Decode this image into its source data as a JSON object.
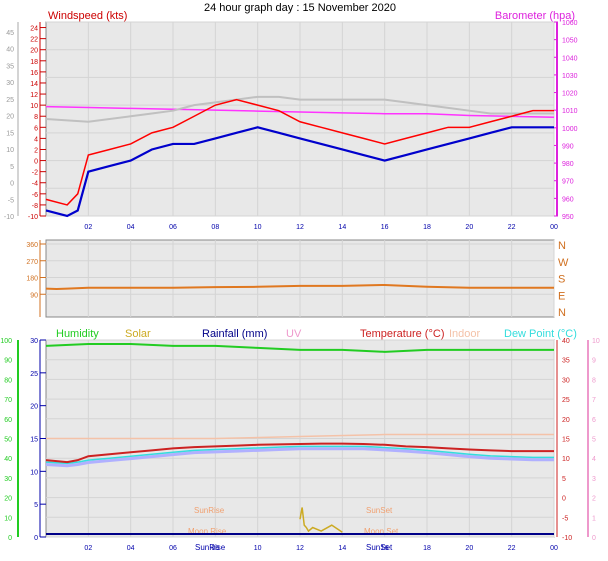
{
  "title": "24 hour graph day : 15 November 2020",
  "colors": {
    "wind": "#ff0000",
    "wind_avg": "#0000cc",
    "baro": "#ff33ff",
    "baro_axis": "#dd22dd",
    "gray": "#c0c0c0",
    "dir": "#e07820",
    "dir_axis": "#d07020",
    "humidity": "#22cc22",
    "solar": "#ccaa22",
    "rain": "#000088",
    "uv": "#ee99cc",
    "temp": "#cc2222",
    "indoor": "#f4c2a8",
    "dew": "#33dddd",
    "dewband": "#b0b0ff",
    "axisblue": "#0000aa",
    "plotbg": "#e8e8e8"
  },
  "chart_data": [
    {
      "type": "line",
      "name": "wind-baro",
      "left_label": "Windspeed (kts)",
      "right_label": "Barometer (hpa)",
      "left_ticks": [
        "24",
        "22",
        "20",
        "18",
        "16",
        "14",
        "12",
        "10",
        "8",
        "6",
        "4",
        "2",
        "0",
        "-2",
        "-4",
        "-6",
        "-8",
        "-10"
      ],
      "left_outer_ticks": [
        "45",
        "40",
        "35",
        "30",
        "25",
        "20",
        "15",
        "10",
        "5",
        "0",
        "-5",
        "-10"
      ],
      "right_ticks": [
        "1060",
        "1050",
        "1040",
        "1030",
        "1020",
        "1010",
        "1000",
        "990",
        "980",
        "970",
        "960",
        "950"
      ],
      "x_ticks": [
        "02",
        "04",
        "06",
        "08",
        "10",
        "12",
        "14",
        "16",
        "18",
        "20",
        "22",
        "00"
      ],
      "ylim": [
        -10,
        25
      ],
      "baro_x": [
        0,
        2,
        4,
        6,
        8,
        10,
        12,
        14,
        16,
        18,
        20,
        22,
        24
      ],
      "baro_y": [
        1012,
        1011.5,
        1011,
        1010.5,
        1010,
        1009.5,
        1009,
        1008.5,
        1008,
        1008,
        1007,
        1006.5,
        1006
      ],
      "gray_x": [
        0,
        2,
        4,
        5,
        6,
        7,
        8,
        9,
        10,
        11,
        12,
        13,
        14,
        15,
        16,
        17,
        18,
        19,
        20,
        21,
        22,
        23,
        24
      ],
      "gray_y": [
        7.5,
        7,
        8,
        8.5,
        9,
        10,
        10.5,
        11,
        11.5,
        11.5,
        11,
        11,
        11,
        11,
        11,
        10.5,
        10,
        9.5,
        9,
        8.5,
        8.5,
        8.5,
        8.5
      ],
      "wind_avg_x": [
        0,
        1,
        1.5,
        2,
        3,
        4,
        5,
        6,
        7,
        8,
        9,
        10,
        11,
        12,
        13,
        14,
        15,
        16,
        17,
        18,
        19,
        20,
        21,
        22,
        23,
        24
      ],
      "wind_avg_y": [
        -9,
        -10,
        -9,
        -2,
        -1,
        0,
        2,
        3,
        3,
        4,
        5,
        6,
        5,
        4,
        3,
        2,
        1,
        0,
        1,
        2,
        3,
        4,
        5,
        6,
        6,
        6
      ],
      "wind_gust_x": [
        0,
        1,
        1.5,
        2,
        3,
        4,
        5,
        6,
        7,
        8,
        9,
        10,
        11,
        12,
        13,
        14,
        15,
        16,
        17,
        18,
        19,
        20,
        21,
        22,
        23,
        24
      ],
      "wind_gust_y": [
        -7,
        -8,
        -6,
        1,
        2,
        3,
        5,
        6,
        8,
        10,
        11,
        10,
        9,
        7,
        6,
        5,
        4,
        3,
        4,
        5,
        6,
        6,
        7,
        8,
        9,
        9
      ]
    },
    {
      "type": "line",
      "name": "wind-direction",
      "left_ticks": [
        "360",
        "270",
        "180",
        "90"
      ],
      "right_ticks": [
        "N",
        "W",
        "S",
        "E",
        "N"
      ],
      "x": [
        0,
        0.5,
        1,
        2,
        4,
        6,
        8,
        10,
        12,
        14,
        16,
        18,
        20,
        22,
        24
      ],
      "y": [
        120,
        118,
        120,
        125,
        125,
        125,
        128,
        130,
        135,
        135,
        140,
        130,
        125,
        125,
        125
      ]
    },
    {
      "type": "line",
      "name": "temp-humidity",
      "legend": [
        "Humidity",
        "Solar",
        "Rainfall (mm)",
        "UV",
        "Temperature (°C)",
        "Indoor",
        "Dew Point (°C)"
      ],
      "left_ticks": [
        "100",
        "90",
        "80",
        "70",
        "60",
        "50",
        "40",
        "30",
        "20",
        "10",
        "0"
      ],
      "inner_ticks": [
        "30",
        "25",
        "20",
        "15",
        "10",
        "5",
        "0"
      ],
      "right_ticks": [
        "40",
        "35",
        "30",
        "25",
        "20",
        "15",
        "10",
        "5",
        "0",
        "-5",
        "-10"
      ],
      "far_right_ticks": [
        "10",
        "9",
        "8",
        "7",
        "6",
        "5",
        "4",
        "3",
        "2",
        "1",
        "0"
      ],
      "x_ticks": [
        "02",
        "04",
        "06",
        "08",
        "10",
        "12",
        "14",
        "16",
        "18",
        "20",
        "22",
        "00"
      ],
      "annotations": [
        "SunRise",
        "SunSet",
        "Moon Rise",
        "Moon Set",
        "SunRise",
        "SunSet"
      ],
      "humidity_x": [
        0,
        2,
        4,
        6,
        8,
        10,
        12,
        14,
        16,
        18,
        20,
        22,
        24
      ],
      "humidity_y": [
        97,
        98,
        98,
        97,
        97,
        96,
        95,
        95,
        94,
        95,
        95,
        95,
        95
      ],
      "temp_x": [
        0,
        1,
        1.5,
        2,
        3,
        4,
        5,
        6,
        7,
        8,
        9,
        10,
        11,
        12,
        13,
        14,
        15,
        16,
        17,
        18,
        19,
        20,
        21,
        22,
        23,
        24
      ],
      "temp_y": [
        9.5,
        9,
        9.5,
        10.5,
        11,
        11.5,
        12,
        12.5,
        12.8,
        13,
        13.2,
        13.4,
        13.5,
        13.6,
        13.7,
        13.7,
        13.6,
        13.4,
        13,
        12.8,
        12.5,
        12.2,
        12,
        11.8,
        11.8,
        11.8
      ],
      "indoor_x": [
        0,
        4,
        8,
        12,
        16,
        20,
        24
      ],
      "indoor_y": [
        15,
        15,
        15,
        15.5,
        16,
        16,
        16
      ],
      "dew_x": [
        0,
        1,
        1.5,
        2,
        3,
        4,
        5,
        6,
        7,
        8,
        9,
        10,
        11,
        12,
        13,
        14,
        15,
        16,
        17,
        18,
        19,
        20,
        21,
        22,
        23,
        24
      ],
      "dew_y": [
        9,
        8.7,
        9,
        9.5,
        10,
        10.5,
        11,
        11.5,
        12,
        12.2,
        12.4,
        12.6,
        12.8,
        13,
        13,
        13,
        13,
        12.7,
        12.4,
        12,
        11.5,
        11,
        10.6,
        10.4,
        10.2,
        10.2
      ],
      "solar_x": [
        12,
        12.1,
        12.2,
        12.3,
        12.4,
        12.6,
        13,
        13.5,
        14
      ],
      "solar_y": [
        1.5,
        2.5,
        1,
        0.8,
        0.5,
        0.8,
        0.5,
        1,
        0.4
      ],
      "rain_y": 0
    }
  ]
}
